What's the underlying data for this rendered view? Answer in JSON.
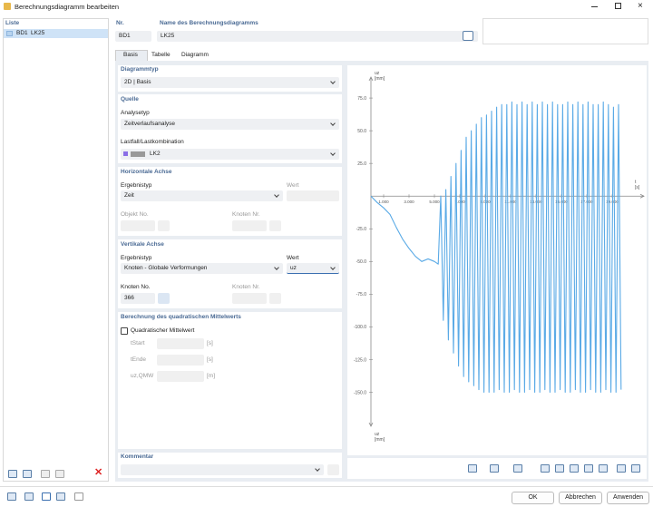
{
  "window": {
    "title": "Berechnungsdiagramm bearbeiten"
  },
  "list": {
    "header": "Liste",
    "items": [
      {
        "id": "BD1",
        "name": "LK25"
      }
    ]
  },
  "fields": {
    "nr_label": "Nr.",
    "nr_value": "BD1",
    "name_label": "Name des Berechnungsdiagramms",
    "name_value": "LK25"
  },
  "tabs": [
    "Basis",
    "Tabelle",
    "Diagramm"
  ],
  "diagrammtyp": {
    "title": "Diagrammtyp",
    "value": "2D | Basis"
  },
  "quelle": {
    "title": "Quelle",
    "analysetyp_label": "Analysetyp",
    "analysetyp": "Zeitverlaufsanalyse",
    "lastfall_label": "Lastfall/Lastkombination",
    "lastfall": "LK2"
  },
  "horizontal": {
    "title": "Horizontale Achse",
    "ergebnistyp_label": "Ergebnistyp",
    "ergebnistyp": "Zeit",
    "wert_label": "Wert",
    "objekt_label": "Objekt No.",
    "knoten_label": "Knoten Nr."
  },
  "vertikal": {
    "title": "Vertikale Achse",
    "ergebnistyp_label": "Ergebnistyp",
    "ergebnistyp": "Knoten - Globale Verformungen",
    "wert_label": "Wert",
    "wert": "uz",
    "knoten_no_label": "Knoten No.",
    "knoten_no": "366",
    "knoten_nr_label": "Knoten Nr."
  },
  "mittelwert": {
    "title": "Berechnung des quadratischen Mittelwerts",
    "checkbox": "Quadratischer Mittelwert",
    "rows": [
      {
        "label": "tStart",
        "unit": "[s]"
      },
      {
        "label": "tEnde",
        "unit": "[s]"
      },
      {
        "label": "uz,QMW",
        "unit": "[m]"
      }
    ]
  },
  "kommentar": {
    "title": "Kommentar"
  },
  "buttons": [
    "OK",
    "Abbrechen",
    "Anwenden"
  ],
  "plot": {
    "y_axis_top": {
      "label": "uz",
      "unit": "[mm]"
    },
    "y_axis_bottom": {
      "label": "uz",
      "unit": "[mm]"
    },
    "x_axis": {
      "label": "t",
      "unit": "[s]"
    },
    "color": "#5aaae6",
    "xlim": [
      0,
      21.5
    ],
    "ylim": [
      -176,
      91
    ],
    "xticks": [
      {
        "value": 1,
        "label": "1.000"
      },
      {
        "value": 3,
        "label": "3.000"
      },
      {
        "value": 5,
        "label": "5.000"
      },
      {
        "value": 7,
        "label": "7.000"
      },
      {
        "value": 9,
        "label": "9.000"
      },
      {
        "value": 11,
        "label": "11.000"
      },
      {
        "value": 13,
        "label": "13.000"
      },
      {
        "value": 15,
        "label": "15.000"
      },
      {
        "value": 17,
        "label": "17.000"
      },
      {
        "value": 19,
        "label": "19.000"
      }
    ],
    "yticks": [
      {
        "value": 75,
        "label": "75.0"
      },
      {
        "value": 50,
        "label": "50.0"
      },
      {
        "value": 25,
        "label": "25.0"
      },
      {
        "value": -25,
        "label": "-25.0"
      },
      {
        "value": -50,
        "label": "-50.0"
      },
      {
        "value": -75,
        "label": "-75.0"
      },
      {
        "value": -100,
        "label": "-100.0"
      },
      {
        "value": -125,
        "label": "-125.0"
      },
      {
        "value": -150,
        "label": "-150.0"
      }
    ],
    "t": [
      0,
      0.5,
      1,
      1.5,
      2,
      2.5,
      3,
      3.5,
      4,
      4.5,
      5,
      5.3,
      5.5,
      5.7,
      5.9,
      6.1,
      6.3,
      6.5,
      6.7,
      6.9,
      7.1,
      7.3,
      7.5,
      7.7,
      7.9,
      8.1,
      8.3,
      8.5,
      8.7,
      8.9,
      9.1,
      9.3,
      9.5,
      9.7,
      9.9,
      10.1,
      10.3,
      10.5,
      10.7,
      10.9,
      11.1,
      11.3,
      11.5,
      11.7,
      11.9,
      12.1,
      12.3,
      12.5,
      12.7,
      12.9,
      13.1,
      13.3,
      13.5,
      13.7,
      13.9,
      14.1,
      14.3,
      14.5,
      14.7,
      14.9,
      15.1,
      15.3,
      15.5,
      15.7,
      15.9,
      16.1,
      16.3,
      16.5,
      16.7,
      16.9,
      17.1,
      17.3,
      17.5,
      17.7,
      17.9,
      18.1,
      18.3,
      18.5,
      18.7,
      18.9,
      19.1,
      19.3,
      19.5,
      19.7
    ],
    "uz": [
      0,
      -5,
      -9,
      -14,
      -24,
      -33,
      -40,
      -46,
      -50,
      -48,
      -50,
      -52,
      0,
      -95,
      5,
      -110,
      15,
      -120,
      25,
      -130,
      35,
      -138,
      45,
      -142,
      50,
      -145,
      55,
      -148,
      60,
      -150,
      62,
      -150,
      65,
      -150,
      68,
      -148,
      70,
      -150,
      70,
      -150,
      72,
      -148,
      70,
      -150,
      72,
      -150,
      70,
      -148,
      72,
      -150,
      70,
      -150,
      72,
      -148,
      70,
      -150,
      72,
      -150,
      70,
      -148,
      70,
      -150,
      72,
      -150,
      70,
      -148,
      72,
      -150,
      70,
      -150,
      72,
      -148,
      70,
      -150,
      70,
      -150,
      72,
      -148,
      70,
      -150,
      68,
      -150,
      70,
      -148
    ]
  }
}
